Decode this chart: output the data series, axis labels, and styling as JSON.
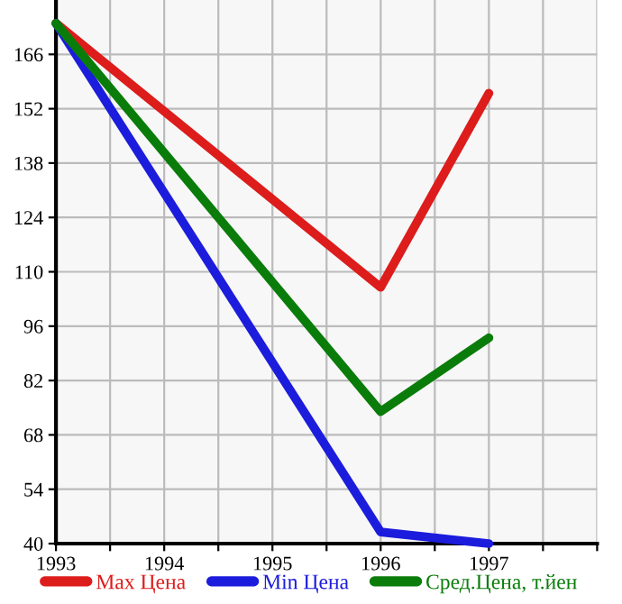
{
  "chart_data": {
    "type": "line",
    "xlim": [
      1993,
      1998
    ],
    "ylim": [
      40,
      180
    ],
    "xticks": [
      1993,
      {
        "value": 1993.5,
        "label": null
      },
      1994,
      {
        "value": 1994.5,
        "label": null
      },
      1995,
      {
        "value": 1995.5,
        "label": null
      },
      1996,
      {
        "value": 1996.5,
        "label": null
      },
      1997,
      {
        "value": 1997.5,
        "label": null
      },
      {
        "value": 1998,
        "label": null
      }
    ],
    "yticks": [
      40,
      54,
      68,
      82,
      96,
      110,
      124,
      138,
      152,
      166
    ],
    "grid": true,
    "legend": "bottom",
    "marker": "none",
    "line_style": "solid",
    "series": [
      {
        "name": "Max Цена",
        "color": "#dd1c1c",
        "x": [
          1993,
          1996,
          1997
        ],
        "values": [
          174,
          106,
          156
        ]
      },
      {
        "name": "Min Цена",
        "color": "#1c1cdd",
        "x": [
          1993,
          1996,
          1997
        ],
        "values": [
          174,
          43,
          40
        ]
      },
      {
        "name": "Сред.Цена, т.йен",
        "color": "#0a7c0a",
        "x": [
          1993,
          1996,
          1997
        ],
        "values": [
          174,
          74,
          93
        ]
      }
    ]
  }
}
